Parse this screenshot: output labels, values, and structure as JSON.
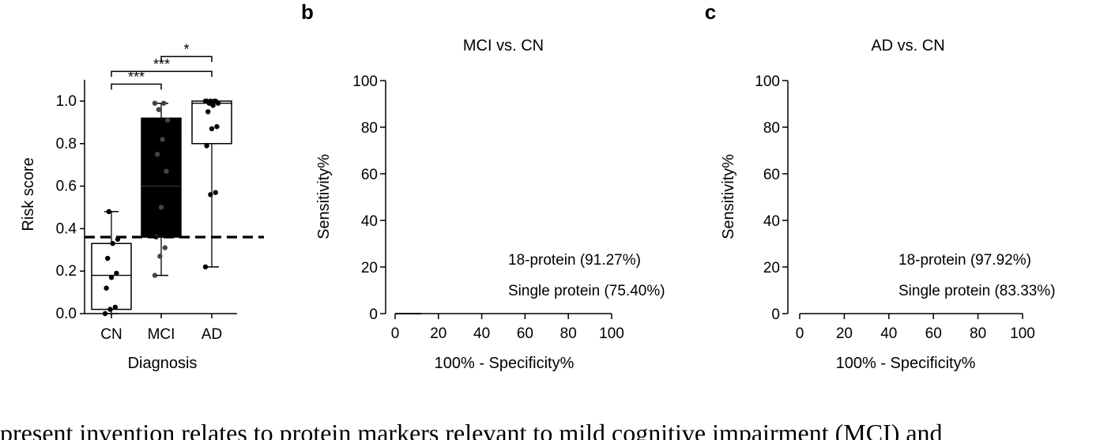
{
  "chart_data": [
    {
      "panel": "",
      "type": "box",
      "title": "",
      "xlabel": "Diagnosis",
      "ylabel": "Risk score",
      "categories": [
        "CN",
        "MCI",
        "AD"
      ],
      "ylim": [
        0,
        1.0
      ],
      "yticks": [
        "0.0",
        "0.2",
        "0.4",
        "0.6",
        "0.8",
        "1.0"
      ],
      "boxes": [
        {
          "category": "CN",
          "min": 0.0,
          "q1": 0.02,
          "median": 0.18,
          "q3": 0.33,
          "max": 0.48,
          "fill": "#ffffff",
          "points": [
            0.0,
            0.02,
            0.03,
            0.12,
            0.17,
            0.19,
            0.26,
            0.33,
            0.35,
            0.48
          ]
        },
        {
          "category": "MCI",
          "min": 0.18,
          "q1": 0.36,
          "median": 0.6,
          "q3": 0.92,
          "max": 0.99,
          "fill": "#000000",
          "points": [
            0.18,
            0.27,
            0.31,
            0.36,
            0.5,
            0.67,
            0.75,
            0.82,
            0.91,
            0.96,
            0.99,
            0.99
          ]
        },
        {
          "category": "AD",
          "min": 0.22,
          "q1": 0.8,
          "median": 0.99,
          "q3": 1.0,
          "max": 1.0,
          "fill": "#ffffff",
          "points": [
            0.22,
            0.56,
            0.57,
            0.79,
            0.87,
            0.88,
            0.95,
            0.98,
            0.99,
            0.99,
            1.0,
            1.0,
            1.0,
            1.0,
            1.0
          ]
        }
      ],
      "threshold": 0.36,
      "significance": [
        {
          "from": "CN",
          "to": "MCI",
          "label": "***",
          "level": 1.08
        },
        {
          "from": "CN",
          "to": "AD",
          "label": "***",
          "level": 1.14
        },
        {
          "from": "MCI",
          "to": "AD",
          "label": "*",
          "level": 1.21
        }
      ]
    },
    {
      "panel": "b",
      "type": "line",
      "title": "MCI vs. CN",
      "xlabel": "100% - Specificity%",
      "ylabel": "Sensitivity%",
      "xlim": [
        0,
        100
      ],
      "ylim": [
        0,
        100
      ],
      "xticks": [
        "0",
        "20",
        "40",
        "60",
        "80",
        "100"
      ],
      "yticks": [
        "0",
        "20",
        "40",
        "60",
        "80",
        "100"
      ],
      "series": [
        {
          "name": "18-protein (91.27%)",
          "x": [
            0,
            12
          ],
          "y": [
            0,
            0
          ]
        },
        {
          "name": "Single protein (75.40%)",
          "x": [],
          "y": []
        }
      ]
    },
    {
      "panel": "c",
      "type": "line",
      "title": "AD vs. CN",
      "xlabel": "100% - Specificity%",
      "ylabel": "Sensitivity%",
      "xlim": [
        0,
        100
      ],
      "ylim": [
        0,
        100
      ],
      "xticks": [
        "0",
        "20",
        "40",
        "60",
        "80",
        "100"
      ],
      "yticks": [
        "0",
        "20",
        "40",
        "60",
        "80",
        "100"
      ],
      "series": [
        {
          "name": "18-protein (97.92%)",
          "x": [],
          "y": []
        },
        {
          "name": "Single protein (83.33%)",
          "x": [],
          "y": []
        }
      ]
    }
  ],
  "caption": "present invention relates to protein markers relevant to mild cognitive impairment (MCI) and"
}
